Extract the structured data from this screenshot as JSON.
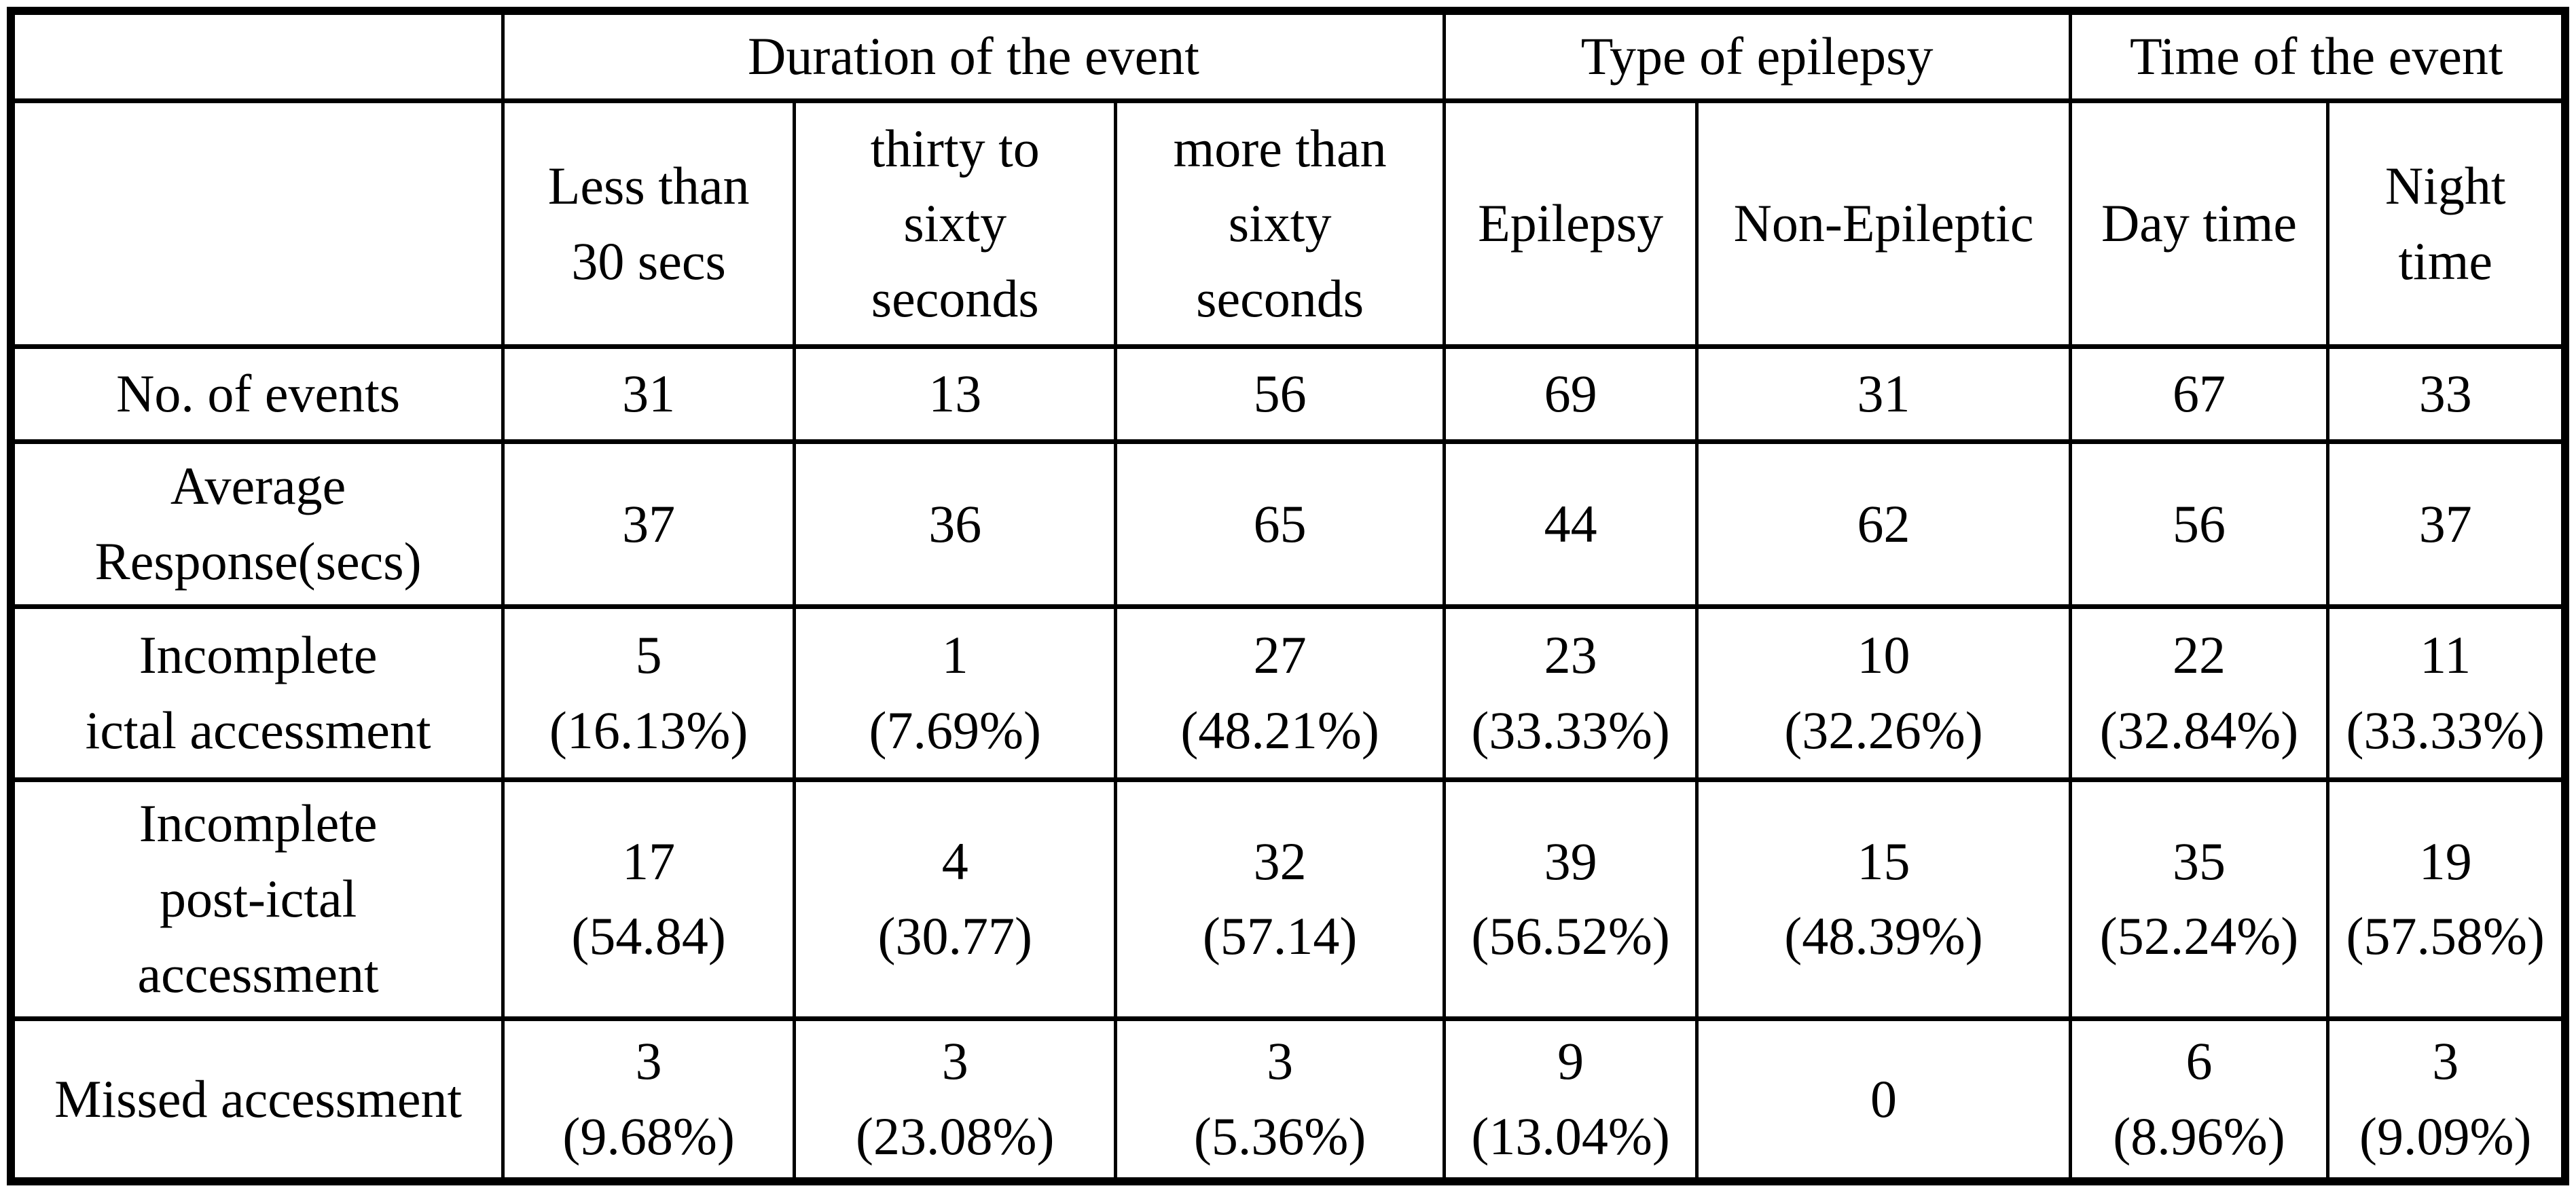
{
  "table": {
    "colors": {
      "border": "#000000",
      "background": "#ffffff",
      "text": "#000000"
    },
    "col_groups": [
      {
        "label": "",
        "span": 1
      },
      {
        "label": "Duration of the event",
        "span": 3
      },
      {
        "label": "Type of epilepsy",
        "span": 2
      },
      {
        "label": "Time of the event",
        "span": 2
      }
    ],
    "col_headers": [
      "",
      "Less than\n30 secs",
      "thirty to\nsixty\nseconds",
      "more than\nsixty\nseconds",
      "Epilepsy",
      "Non-Epileptic",
      "Day time",
      "Night\ntime"
    ],
    "rows": [
      {
        "label": "No. of events",
        "cells": [
          "31",
          "13",
          "56",
          "69",
          "31",
          "67",
          "33"
        ]
      },
      {
        "label": "Average\nResponse(secs)",
        "cells": [
          "37",
          "36",
          "65",
          "44",
          "62",
          "56",
          "37"
        ]
      },
      {
        "label": "Incomplete\nictal accessment",
        "cells": [
          "5\n(16.13%)",
          "1\n(7.69%)",
          "27\n(48.21%)",
          "23\n(33.33%)",
          "10\n(32.26%)",
          "22\n(32.84%)",
          "11\n(33.33%)"
        ]
      },
      {
        "label": "Incomplete\npost-ictal\naccessment",
        "cells": [
          "17\n(54.84)",
          "4\n(30.77)",
          "32\n(57.14)",
          "39\n(56.52%)",
          "15\n(48.39%)",
          "35\n(52.24%)",
          "19\n(57.58%)"
        ]
      },
      {
        "label": "Missed accessment",
        "cells": [
          "3\n(9.68%)",
          "3\n(23.08%)",
          "3\n(5.36%)",
          "9\n(13.04%)",
          "0",
          "6\n(8.96%)",
          "3\n(9.09%)"
        ]
      }
    ]
  }
}
